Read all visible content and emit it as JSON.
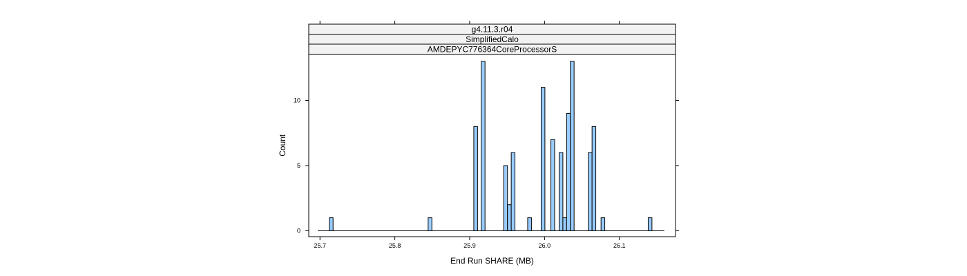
{
  "chart_data": {
    "type": "bar",
    "strips": [
      "g4.11.3.r04",
      "SimplifiedCalo",
      "AMDEPYC776364CoreProcessorS"
    ],
    "xlabel": "End Run SHARE (MB)",
    "ylabel": "Count",
    "xlim": [
      25.685,
      26.175
    ],
    "ylim": [
      -0.45,
      13.55
    ],
    "x_ticks": [
      {
        "value": 25.7,
        "label": "25.7"
      },
      {
        "value": 25.8,
        "label": "25.8"
      },
      {
        "value": 25.9,
        "label": "25.9"
      },
      {
        "value": 26.0,
        "label": "26.0"
      },
      {
        "value": 26.1,
        "label": "26.1"
      }
    ],
    "y_ticks": [
      {
        "value": 0,
        "label": "0"
      },
      {
        "value": 5,
        "label": "5"
      },
      {
        "value": 10,
        "label": "10"
      }
    ],
    "baseline": [
      25.697,
      26.16
    ],
    "bin_width": 0.005,
    "bins": [
      {
        "x": 25.715,
        "count": 1
      },
      {
        "x": 25.847,
        "count": 1
      },
      {
        "x": 25.908,
        "count": 8
      },
      {
        "x": 25.918,
        "count": 13
      },
      {
        "x": 25.948,
        "count": 5
      },
      {
        "x": 25.953,
        "count": 2
      },
      {
        "x": 25.958,
        "count": 6
      },
      {
        "x": 25.98,
        "count": 1
      },
      {
        "x": 25.998,
        "count": 11
      },
      {
        "x": 26.011,
        "count": 7
      },
      {
        "x": 26.022,
        "count": 6
      },
      {
        "x": 26.027,
        "count": 1
      },
      {
        "x": 26.032,
        "count": 9
      },
      {
        "x": 26.037,
        "count": 13
      },
      {
        "x": 26.061,
        "count": 6
      },
      {
        "x": 26.066,
        "count": 8
      },
      {
        "x": 26.078,
        "count": 1
      },
      {
        "x": 26.141,
        "count": 1
      }
    ],
    "bar_fill": "#99CCFF",
    "bar_stroke": "#000000",
    "strip_fill": "#F2F2F2"
  }
}
